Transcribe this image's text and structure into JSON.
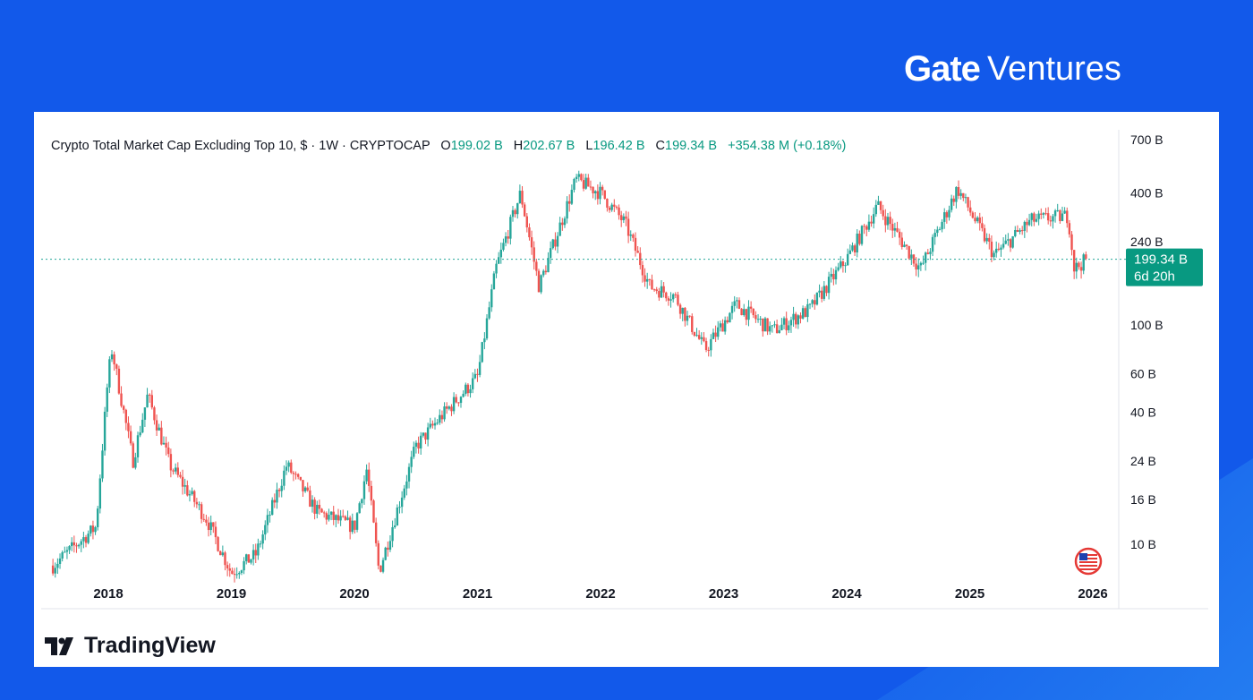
{
  "brand": {
    "name_bold": "Gate",
    "name_light": "Ventures",
    "footer": "TradingView"
  },
  "legend": {
    "title": "Crypto Total Market Cap Excluding Top 10, $ · 1W · CRYPTOCAP",
    "o_label": "O",
    "o": "199.02 B",
    "h_label": "H",
    "h": "202.67 B",
    "l_label": "L",
    "l": "196.42 B",
    "c_label": "C",
    "c": "199.34 B",
    "change": "+354.38 M (+0.18%)"
  },
  "price_label": {
    "value": "199.34 B",
    "countdown": "6d 20h"
  },
  "colors": {
    "up": "#26a69a",
    "down": "#ef5350",
    "label_bg": "#089981"
  },
  "chart_data": {
    "type": "candlestick",
    "title": "Crypto Total Market Cap Excluding Top 10, $",
    "interval": "1W",
    "yscale": "log",
    "ylim": [
      6,
      800
    ],
    "xlim": [
      2017.55,
      2026.2
    ],
    "y_ticks": [
      {
        "v": 700,
        "label": "700 B"
      },
      {
        "v": 400,
        "label": "400 B"
      },
      {
        "v": 240,
        "label": "240 B"
      },
      {
        "v": 100,
        "label": "100 B"
      },
      {
        "v": 60,
        "label": "60 B"
      },
      {
        "v": 40,
        "label": "40 B"
      },
      {
        "v": 24,
        "label": "24 B"
      },
      {
        "v": 16,
        "label": "16 B"
      },
      {
        "v": 10,
        "label": "10 B"
      }
    ],
    "x_ticks": [
      "2018",
      "2019",
      "2020",
      "2021",
      "2022",
      "2023",
      "2024",
      "2025",
      "2026"
    ],
    "last_close": 199.34,
    "anchors": [
      [
        2017.55,
        8
      ],
      [
        2017.9,
        12
      ],
      [
        2018.0,
        60
      ],
      [
        2018.03,
        77
      ],
      [
        2018.2,
        24
      ],
      [
        2018.32,
        48
      ],
      [
        2018.5,
        23
      ],
      [
        2018.8,
        13
      ],
      [
        2019.0,
        7.4
      ],
      [
        2019.2,
        9
      ],
      [
        2019.45,
        23
      ],
      [
        2019.7,
        14
      ],
      [
        2020.0,
        12
      ],
      [
        2020.1,
        22
      ],
      [
        2020.2,
        7.5
      ],
      [
        2020.5,
        28
      ],
      [
        2020.7,
        38
      ],
      [
        2021.0,
        58
      ],
      [
        2021.15,
        181
      ],
      [
        2021.35,
        400
      ],
      [
        2021.5,
        150
      ],
      [
        2021.8,
        460
      ],
      [
        2022.0,
        400
      ],
      [
        2022.2,
        290
      ],
      [
        2022.4,
        150
      ],
      [
        2022.6,
        136
      ],
      [
        2022.85,
        77
      ],
      [
        2023.1,
        124
      ],
      [
        2023.4,
        94
      ],
      [
        2023.7,
        118
      ],
      [
        2024.0,
        200
      ],
      [
        2024.25,
        350
      ],
      [
        2024.6,
        180
      ],
      [
        2024.9,
        420
      ],
      [
        2025.2,
        208
      ],
      [
        2025.5,
        300
      ],
      [
        2025.8,
        315
      ],
      [
        2025.85,
        180
      ],
      [
        2025.95,
        199.34
      ]
    ]
  }
}
